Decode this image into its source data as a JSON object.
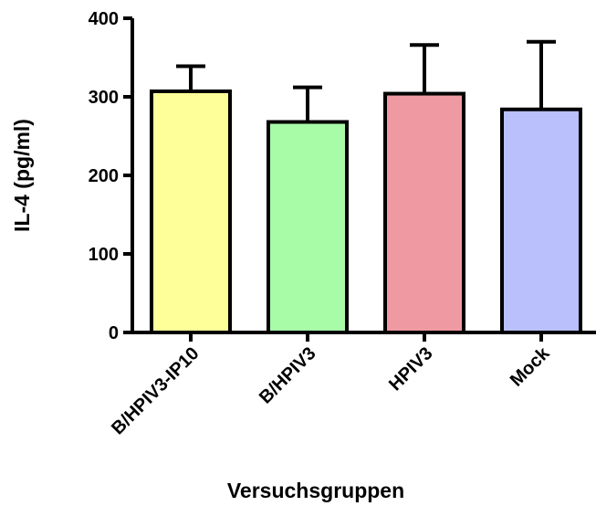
{
  "chart_data": {
    "type": "bar",
    "xlabel": "Versuchsgruppen",
    "ylabel": "IL-4 (pg/ml)",
    "ylim": [
      0,
      400
    ],
    "yticks": [
      0,
      100,
      200,
      300,
      400
    ],
    "categories": [
      "B/HPIV3-IP10",
      "B/HPIV3",
      "HPIV3",
      "Mock"
    ],
    "values": [
      307,
      268,
      304,
      284
    ],
    "error_upper": [
      32,
      44,
      62,
      86
    ],
    "bar_colors": [
      "#ffff99",
      "#a8fca8",
      "#ef9aa3",
      "#b9c0fb"
    ],
    "grid": false,
    "legend": "none"
  }
}
